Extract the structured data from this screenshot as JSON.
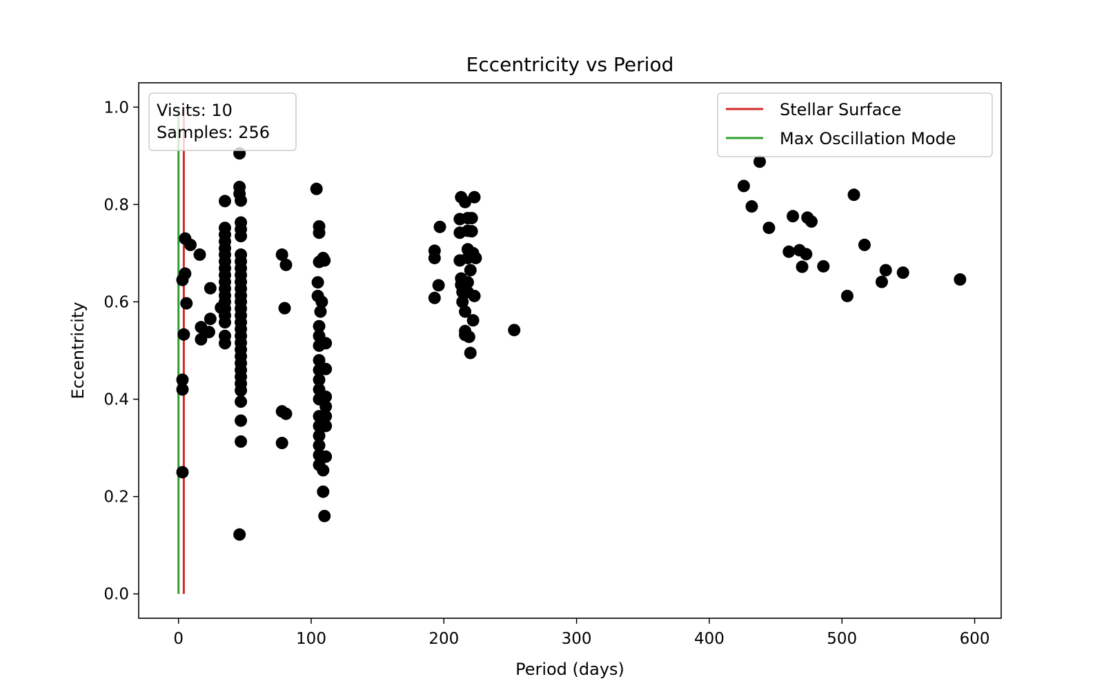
{
  "chart_data": {
    "type": "scatter",
    "title": "Eccentricity vs Period",
    "xlabel": "Period (days)",
    "ylabel": "Eccentricity",
    "xlim": [
      -30,
      620
    ],
    "ylim": [
      -0.05,
      1.05
    ],
    "xticks": [
      0,
      100,
      200,
      300,
      400,
      500,
      600
    ],
    "yticks": [
      0.0,
      0.2,
      0.4,
      0.6,
      0.8,
      1.0
    ],
    "xtick_labels": [
      "0",
      "100",
      "200",
      "300",
      "400",
      "500",
      "600"
    ],
    "ytick_labels": [
      "0.0",
      "0.2",
      "0.4",
      "0.6",
      "0.8",
      "1.0"
    ],
    "grid": false,
    "info_box": {
      "visits": "Visits: 10",
      "samples": "Samples: 256"
    },
    "legend": {
      "placement": "upper-right",
      "entries": [
        {
          "label": "Stellar Surface",
          "color": "#d62728"
        },
        {
          "label": "Max Oscillation Mode",
          "color": "#2ca02c"
        }
      ]
    },
    "vlines": [
      {
        "x": 4,
        "ymin": 0,
        "ymax": 1.0,
        "color": "#d62728"
      },
      {
        "x": 0,
        "ymin": 0,
        "ymax": 1.0,
        "color": "#2ca02c"
      }
    ],
    "marker_color": "#000000",
    "points": [
      [
        3,
        0.645
      ],
      [
        4,
        0.533
      ],
      [
        3,
        0.44
      ],
      [
        3,
        0.42
      ],
      [
        3,
        0.25
      ],
      [
        5,
        0.73
      ],
      [
        5,
        0.658
      ],
      [
        6,
        0.597
      ],
      [
        9,
        0.717
      ],
      [
        16,
        0.697
      ],
      [
        17,
        0.548
      ],
      [
        17,
        0.523
      ],
      [
        23,
        0.538
      ],
      [
        24,
        0.565
      ],
      [
        24,
        0.628
      ],
      [
        32,
        0.588
      ],
      [
        35,
        0.807
      ],
      [
        35,
        0.752
      ],
      [
        35,
        0.738
      ],
      [
        35,
        0.724
      ],
      [
        35,
        0.71
      ],
      [
        35,
        0.697
      ],
      [
        35,
        0.683
      ],
      [
        35,
        0.669
      ],
      [
        35,
        0.655
      ],
      [
        35,
        0.641
      ],
      [
        35,
        0.627
      ],
      [
        35,
        0.613
      ],
      [
        35,
        0.6
      ],
      [
        35,
        0.586
      ],
      [
        35,
        0.572
      ],
      [
        35,
        0.558
      ],
      [
        35,
        0.53
      ],
      [
        35,
        0.515
      ],
      [
        46,
        0.905
      ],
      [
        46,
        0.836
      ],
      [
        46,
        0.822
      ],
      [
        46,
        0.122
      ],
      [
        47,
        0.808
      ],
      [
        47,
        0.763
      ],
      [
        47,
        0.749
      ],
      [
        47,
        0.735
      ],
      [
        47,
        0.697
      ],
      [
        47,
        0.683
      ],
      [
        47,
        0.669
      ],
      [
        47,
        0.655
      ],
      [
        47,
        0.641
      ],
      [
        47,
        0.627
      ],
      [
        47,
        0.613
      ],
      [
        47,
        0.6
      ],
      [
        47,
        0.586
      ],
      [
        47,
        0.572
      ],
      [
        47,
        0.558
      ],
      [
        47,
        0.544
      ],
      [
        47,
        0.53
      ],
      [
        47,
        0.516
      ],
      [
        47,
        0.502
      ],
      [
        47,
        0.488
      ],
      [
        47,
        0.474
      ],
      [
        47,
        0.46
      ],
      [
        47,
        0.446
      ],
      [
        47,
        0.432
      ],
      [
        47,
        0.418
      ],
      [
        47,
        0.395
      ],
      [
        47,
        0.356
      ],
      [
        47,
        0.313
      ],
      [
        78,
        0.697
      ],
      [
        78,
        0.375
      ],
      [
        78,
        0.31
      ],
      [
        80,
        0.587
      ],
      [
        81,
        0.676
      ],
      [
        81,
        0.37
      ],
      [
        104,
        0.832
      ],
      [
        105,
        0.64
      ],
      [
        105,
        0.612
      ],
      [
        106,
        0.755
      ],
      [
        106,
        0.742
      ],
      [
        106,
        0.682
      ],
      [
        106,
        0.55
      ],
      [
        106,
        0.53
      ],
      [
        106,
        0.51
      ],
      [
        106,
        0.48
      ],
      [
        106,
        0.46
      ],
      [
        106,
        0.44
      ],
      [
        106,
        0.42
      ],
      [
        106,
        0.4
      ],
      [
        106,
        0.365
      ],
      [
        106,
        0.345
      ],
      [
        106,
        0.325
      ],
      [
        106,
        0.305
      ],
      [
        106,
        0.285
      ],
      [
        106,
        0.265
      ],
      [
        107,
        0.58
      ],
      [
        108,
        0.6
      ],
      [
        109,
        0.69
      ],
      [
        109,
        0.254
      ],
      [
        109,
        0.21
      ],
      [
        110,
        0.685
      ],
      [
        110,
        0.16
      ],
      [
        111,
        0.515
      ],
      [
        111,
        0.462
      ],
      [
        111,
        0.405
      ],
      [
        111,
        0.385
      ],
      [
        111,
        0.365
      ],
      [
        111,
        0.345
      ],
      [
        111,
        0.282
      ],
      [
        193,
        0.705
      ],
      [
        193,
        0.69
      ],
      [
        193,
        0.608
      ],
      [
        196,
        0.634
      ],
      [
        197,
        0.754
      ],
      [
        212,
        0.77
      ],
      [
        212,
        0.742
      ],
      [
        212,
        0.685
      ],
      [
        213,
        0.815
      ],
      [
        213,
        0.648
      ],
      [
        213,
        0.635
      ],
      [
        214,
        0.62
      ],
      [
        214,
        0.6
      ],
      [
        216,
        0.805
      ],
      [
        216,
        0.58
      ],
      [
        216,
        0.54
      ],
      [
        216,
        0.532
      ],
      [
        218,
        0.772
      ],
      [
        218,
        0.746
      ],
      [
        218,
        0.708
      ],
      [
        218,
        0.69
      ],
      [
        218,
        0.64
      ],
      [
        218,
        0.62
      ],
      [
        219,
        0.528
      ],
      [
        220,
        0.495
      ],
      [
        220,
        0.665
      ],
      [
        221,
        0.745
      ],
      [
        221,
        0.772
      ],
      [
        222,
        0.7
      ],
      [
        222,
        0.562
      ],
      [
        223,
        0.612
      ],
      [
        223,
        0.815
      ],
      [
        224,
        0.69
      ],
      [
        253,
        0.542
      ],
      [
        426,
        0.838
      ],
      [
        432,
        0.796
      ],
      [
        438,
        0.888
      ],
      [
        445,
        0.752
      ],
      [
        460,
        0.703
      ],
      [
        463,
        0.776
      ],
      [
        468,
        0.706
      ],
      [
        470,
        0.672
      ],
      [
        473,
        0.698
      ],
      [
        474,
        0.773
      ],
      [
        477,
        0.765
      ],
      [
        486,
        0.673
      ],
      [
        504,
        0.612
      ],
      [
        509,
        0.82
      ],
      [
        517,
        0.717
      ],
      [
        530,
        0.641
      ],
      [
        533,
        0.665
      ],
      [
        546,
        0.66
      ],
      [
        589,
        0.646
      ]
    ]
  }
}
